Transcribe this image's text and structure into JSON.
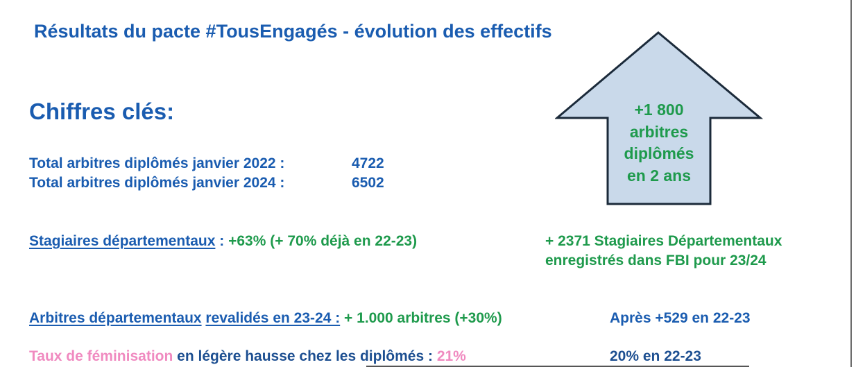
{
  "title": "Résultats du pacte #TousEngagés - évolution des effectifs",
  "key_figures_heading": "Chiffres clés:",
  "totals": [
    {
      "label": "Total arbitres diplômés janvier 2022 :",
      "value": "4722"
    },
    {
      "label": "Total arbitres diplômés janvier 2024 :",
      "value": "6502"
    }
  ],
  "arrow": {
    "lines": [
      "+1 800",
      "arbitres",
      "diplômés",
      "en 2 ans"
    ],
    "fill_color": "#c9d9ea",
    "stroke_color": "#1b2a3a"
  },
  "stagiaires": {
    "label": "Stagiaires départementaux",
    "separator": " : ",
    "value": "+63% (+ 70% déjà en 22-23)",
    "note_line1": "+ 2371 Stagiaires Départementaux",
    "note_line2": "enregistrés dans FBI pour 23/24"
  },
  "revalides": {
    "label1": "Arbitres départementaux",
    "label2": "revalidés en 23-24 :",
    "value": "+ 1.000 arbitres (+30%)",
    "note": "Après +529 en 22-23"
  },
  "feminisation": {
    "label_pink": "Taux de féminisation",
    "label_rest": " en légère hausse chez les diplômés : ",
    "value": "21%",
    "note": "20% en 22-23"
  },
  "colors": {
    "blue": "#1a5cb0",
    "green": "#1e9a4c",
    "pink": "#f08ac0"
  }
}
